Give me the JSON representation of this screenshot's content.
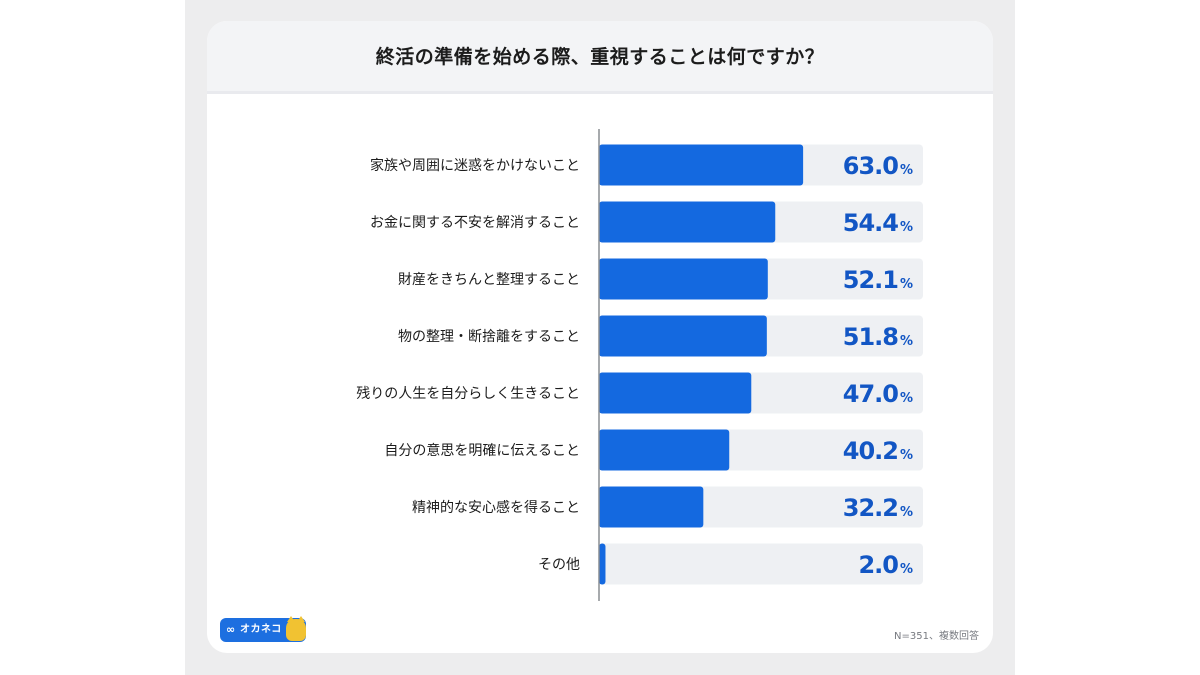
{
  "chart_data": {
    "type": "bar",
    "orientation": "horizontal",
    "title": "終活の準備を始める際、重視することは何ですか？",
    "categories": [
      "家族や周囲に迷惑をかけないこと",
      "お金に関する不安を解消すること",
      "財産をきちんと整理すること",
      "物の整理・断捨離をすること",
      "残りの人生を自分らしく生きること",
      "自分の意思を明確に伝えること",
      "精神的な安心感を得ること",
      "その他"
    ],
    "values": [
      63.0,
      54.4,
      52.1,
      51.8,
      47.0,
      40.2,
      32.2,
      2.0
    ],
    "value_labels": [
      "63.0",
      "54.4",
      "52.1",
      "51.8",
      "47.0",
      "40.2",
      "32.2",
      "2.0"
    ],
    "unit": "%",
    "xlim": [
      0,
      100
    ],
    "xlabel": "",
    "ylabel": "",
    "grid": false,
    "legend": "none",
    "bar_color": "#1469e0",
    "track_color": "#eef0f3",
    "value_color": "#1256c4"
  },
  "footer": {
    "note": "N=351、複数回答",
    "logo_text": "オカネコ",
    "logo_mark": "∞"
  },
  "colors": {
    "header_bg": "#f3f4f6",
    "page_bg": "#ededee"
  }
}
